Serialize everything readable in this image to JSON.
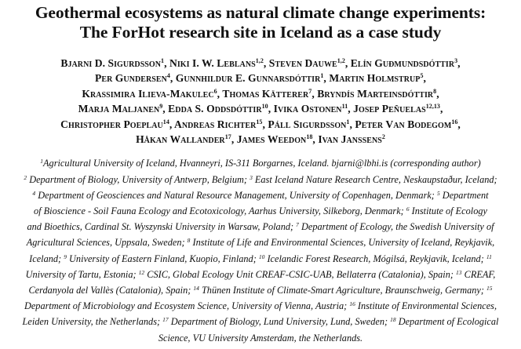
{
  "paper": {
    "title_line_1": "Geothermal ecosystems as natural climate change experiments:",
    "title_line_2": "The ForHot research site in Iceland as a case study",
    "author_lines": [
      [
        {
          "t": "Bjarni D. Sigurdsson"
        },
        {
          "s": "1"
        },
        {
          "t": ", Niki I. W. Leblans"
        },
        {
          "s": "1,2"
        },
        {
          "t": ", Steven Dauwe"
        },
        {
          "s": "1,2"
        },
        {
          "t": ", Elín Guðmundsdóttir"
        },
        {
          "s": "3"
        },
        {
          "t": ","
        }
      ],
      [
        {
          "t": "Per Gundersen"
        },
        {
          "s": "4"
        },
        {
          "t": ", Gunnhildur E. Gunnarsdóttir"
        },
        {
          "s": "1"
        },
        {
          "t": ", Martin Holmstrup"
        },
        {
          "s": "5"
        },
        {
          "t": ","
        }
      ],
      [
        {
          "t": "Krassimira Ilieva-Makulec"
        },
        {
          "s": "6"
        },
        {
          "t": ", Thomas Kätterer"
        },
        {
          "s": "7"
        },
        {
          "t": ", Bryndís Marteinsdóttir"
        },
        {
          "s": "8"
        },
        {
          "t": ","
        }
      ],
      [
        {
          "t": "Marja Maljanen"
        },
        {
          "s": "9"
        },
        {
          "t": ", Edda S. Oddsdóttir"
        },
        {
          "s": "10"
        },
        {
          "t": ", Ivika Ostonen"
        },
        {
          "s": "11"
        },
        {
          "t": ", Josep Peñuelas"
        },
        {
          "s": "12,13"
        },
        {
          "t": ","
        }
      ],
      [
        {
          "t": "Christopher Poeplau"
        },
        {
          "s": "14"
        },
        {
          "t": ", Andreas Richter"
        },
        {
          "s": "15"
        },
        {
          "t": ", Páll Sigurdsson"
        },
        {
          "s": "1"
        },
        {
          "t": ", Peter Van Bodegom"
        },
        {
          "s": "16"
        },
        {
          "t": ","
        }
      ],
      [
        {
          "t": "Håkan Wallander"
        },
        {
          "s": "17"
        },
        {
          "t": ", James Weedon"
        },
        {
          "s": "18"
        },
        {
          "t": ", Ivan Janssens"
        },
        {
          "s": "2"
        }
      ]
    ],
    "affiliation_lines": [
      [
        {
          "s": "1"
        },
        {
          "t": "Agricultural University of Iceland, Hvanneyri, IS-311 Borgarnes, Iceland. bjarni@lbhi.is (corresponding author)"
        }
      ],
      [
        {
          "s": "2"
        },
        {
          "t": " Department of Biology, University of Antwerp, Belgium; "
        },
        {
          "s": "3"
        },
        {
          "t": " East Iceland Nature Research Centre, Neskaupstaður, Iceland;"
        }
      ],
      [
        {
          "s": "4"
        },
        {
          "t": " Department of Geosciences and Natural Resource Management, University of Copenhagen, Denmark; "
        },
        {
          "s": "5"
        },
        {
          "t": " Department"
        }
      ],
      [
        {
          "t": "of Bioscience - Soil Fauna Ecology and Ecotoxicology, Aarhus University, Silkeborg, Denmark; "
        },
        {
          "s": "6"
        },
        {
          "t": " Institute of Ecology"
        }
      ],
      [
        {
          "t": "and Bioethics, Cardinal St. Wyszynski University in Warsaw, Poland; "
        },
        {
          "s": "7"
        },
        {
          "t": " Department of Ecology, the Swedish University of"
        }
      ],
      [
        {
          "t": "Agricultural Sciences, Uppsala, Sweden; "
        },
        {
          "s": "8"
        },
        {
          "t": " Institute of Life and Environmental Sciences, University of Iceland, Reykjavik,"
        }
      ],
      [
        {
          "t": "Iceland; "
        },
        {
          "s": "9"
        },
        {
          "t": " University of Eastern Finland, Kuopio, Finland; "
        },
        {
          "s": "10"
        },
        {
          "t": " Icelandic Forest Research, Mógilsá, Reykjavik, Iceland; "
        },
        {
          "s": "11"
        }
      ],
      [
        {
          "t": "University of Tartu, Estonia; "
        },
        {
          "s": "12"
        },
        {
          "t": " CSIC, Global Ecology Unit CREAF-CSIC-UAB, Bellaterra (Catalonia), Spain; "
        },
        {
          "s": "13"
        },
        {
          "t": " CREAF,"
        }
      ],
      [
        {
          "t": "Cerdanyola del Vallès (Catalonia), Spain; "
        },
        {
          "s": "14"
        },
        {
          "t": " Thünen Institute of Climate-Smart Agriculture, Braunschweig, Germany; "
        },
        {
          "s": "15"
        }
      ],
      [
        {
          "t": "Department of Microbiology and Ecosystem Science, University of Vienna, Austria; "
        },
        {
          "s": "16"
        },
        {
          "t": " Institute of Environmental Sciences,"
        }
      ],
      [
        {
          "t": "Leiden University, the Netherlands; "
        },
        {
          "s": "17"
        },
        {
          "t": " Department of Biology, Lund University, Lund, Sweden; "
        },
        {
          "s": "18"
        },
        {
          "t": " Department of Ecological"
        }
      ],
      [
        {
          "t": "Science, VU University Amsterdam, the Netherlands."
        }
      ]
    ]
  }
}
